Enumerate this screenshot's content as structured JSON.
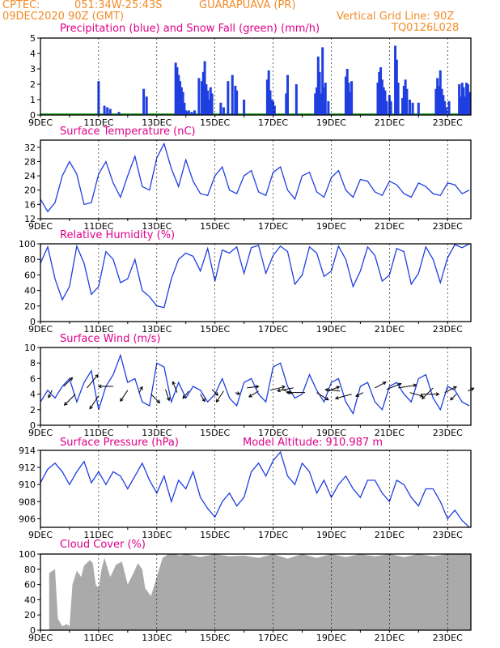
{
  "header": {
    "source": "CPTEC:",
    "coords": "051:34W-25:43S",
    "station": "GUARAPUAVA (PR)",
    "run": "09DEC2020 90Z (GMT)",
    "grid_note": "Vertical Grid Line: 90Z",
    "code": "TQ0126L028"
  },
  "colors": {
    "header": "#f28c28",
    "title": "#e0008a",
    "line": "#1f3fe0",
    "snow": "#20a020",
    "cloud": "#aaaaaa"
  },
  "x_axis": {
    "tick_labels": [
      "9DEC",
      "11DEC",
      "13DEC",
      "15DEC",
      "17DEC",
      "19DEC",
      "21DEC",
      "23DEC"
    ],
    "tick_days": [
      9,
      11,
      13,
      15,
      17,
      19,
      21,
      23
    ],
    "range": [
      9,
      23.8
    ]
  },
  "chart_data": [
    {
      "id": "precip",
      "type": "bar",
      "title": "Precipitation (blue) and Snow Fall (green) (mm/h)",
      "ylim": [
        0,
        5
      ],
      "yticks": [
        0,
        1,
        2,
        3,
        4,
        5
      ],
      "x": [
        11.0,
        11.2,
        11.3,
        11.4,
        11.7,
        12.55,
        12.65,
        13.65,
        13.7,
        13.75,
        13.8,
        13.85,
        13.9,
        13.95,
        14.0,
        14.05,
        14.1,
        14.2,
        14.3,
        14.45,
        14.55,
        14.6,
        14.65,
        14.7,
        14.75,
        14.8,
        14.85,
        14.9,
        15.2,
        15.3,
        15.45,
        15.6,
        15.7,
        15.75,
        16.0,
        16.8,
        16.85,
        16.9,
        16.95,
        17.0,
        17.05,
        17.45,
        17.5,
        17.8,
        18.45,
        18.5,
        18.55,
        18.6,
        18.65,
        18.7,
        18.75,
        18.8,
        18.9,
        19.5,
        19.55,
        19.6,
        19.65,
        19.7,
        20.6,
        20.65,
        20.7,
        20.75,
        20.8,
        20.85,
        20.9,
        21.0,
        21.05,
        21.2,
        21.25,
        21.3,
        21.45,
        21.5,
        21.55,
        21.6,
        21.7,
        21.8,
        22.0,
        22.6,
        22.65,
        22.7,
        22.75,
        22.8,
        22.85,
        22.9,
        22.95,
        23.05,
        23.4,
        23.45,
        23.5,
        23.55,
        23.6,
        23.65,
        23.7,
        23.75
      ],
      "values": [
        2.2,
        0.6,
        0.5,
        0.4,
        0.2,
        1.7,
        1.2,
        3.4,
        3.1,
        2.6,
        2.2,
        1.8,
        1.5,
        0.8,
        0.3,
        0.2,
        0.3,
        0.2,
        0.3,
        2.4,
        2.2,
        2.8,
        3.5,
        2.0,
        1.6,
        1.0,
        1.8,
        1.4,
        0.8,
        0.5,
        2.2,
        2.6,
        1.9,
        1.6,
        1.0,
        2.3,
        2.9,
        1.6,
        1.0,
        0.9,
        0.6,
        1.4,
        2.6,
        2.0,
        1.4,
        1.8,
        3.8,
        2.8,
        1.4,
        4.4,
        1.8,
        2.1,
        0.9,
        2.5,
        3.0,
        2.1,
        1.5,
        2.2,
        2.1,
        2.8,
        3.1,
        2.3,
        1.8,
        1.6,
        0.9,
        1.3,
        0.9,
        4.5,
        3.6,
        2.1,
        1.1,
        1.9,
        2.3,
        1.7,
        1.0,
        0.8,
        0.8,
        1.7,
        2.4,
        1.9,
        2.9,
        1.7,
        1.3,
        0.9,
        0.5,
        0.9,
        2.0,
        1.2,
        2.1,
        1.8,
        1.2,
        2.1,
        2.0,
        1.5
      ],
      "snow": "0"
    },
    {
      "id": "temp",
      "type": "line",
      "title": "Surface Temperature (nC)",
      "ylim": [
        12,
        34
      ],
      "yticks": [
        12,
        16,
        20,
        24,
        28,
        32
      ],
      "x": [
        9.0,
        9.25,
        9.5,
        9.75,
        10.0,
        10.25,
        10.5,
        10.75,
        11.0,
        11.25,
        11.5,
        11.75,
        12.0,
        12.25,
        12.5,
        12.75,
        13.0,
        13.25,
        13.5,
        13.75,
        14.0,
        14.25,
        14.5,
        14.75,
        15.0,
        15.25,
        15.5,
        15.75,
        16.0,
        16.25,
        16.5,
        16.75,
        17.0,
        17.25,
        17.5,
        17.75,
        18.0,
        18.25,
        18.5,
        18.75,
        19.0,
        19.25,
        19.5,
        19.75,
        20.0,
        20.25,
        20.5,
        20.75,
        21.0,
        21.25,
        21.5,
        21.75,
        22.0,
        22.25,
        22.5,
        22.75,
        23.0,
        23.25,
        23.5,
        23.75
      ],
      "values": [
        17.5,
        14.0,
        16.5,
        24.0,
        28.0,
        24.5,
        16.0,
        16.5,
        24.5,
        28.0,
        22.0,
        18.0,
        24.0,
        29.5,
        21.0,
        20.0,
        29.0,
        33.0,
        26.0,
        21.0,
        28.5,
        22.5,
        19.0,
        18.5,
        24.0,
        26.5,
        20.0,
        19.0,
        24.0,
        25.5,
        19.5,
        18.5,
        25.0,
        26.5,
        20.0,
        17.5,
        24.0,
        25.0,
        19.5,
        18.0,
        23.5,
        25.5,
        20.0,
        18.0,
        23.0,
        22.5,
        19.5,
        18.5,
        22.5,
        21.5,
        19.0,
        18.0,
        22.0,
        21.0,
        19.0,
        18.5,
        22.0,
        21.5,
        19.0,
        20.0
      ]
    },
    {
      "id": "rh",
      "type": "line",
      "title": "Relative Humidity (%)",
      "ylim": [
        0,
        100
      ],
      "yticks": [
        0,
        20,
        40,
        60,
        80,
        100
      ],
      "x": [
        9.0,
        9.25,
        9.5,
        9.75,
        10.0,
        10.25,
        10.5,
        10.75,
        11.0,
        11.25,
        11.5,
        11.75,
        12.0,
        12.25,
        12.5,
        12.75,
        13.0,
        13.25,
        13.5,
        13.75,
        14.0,
        14.25,
        14.5,
        14.75,
        15.0,
        15.25,
        15.5,
        15.75,
        16.0,
        16.25,
        16.5,
        16.75,
        17.0,
        17.25,
        17.5,
        17.75,
        18.0,
        18.25,
        18.5,
        18.75,
        19.0,
        19.25,
        19.5,
        19.75,
        20.0,
        20.25,
        20.5,
        20.75,
        21.0,
        21.25,
        21.5,
        21.75,
        22.0,
        22.25,
        22.5,
        22.75,
        23.0,
        23.25,
        23.5,
        23.75
      ],
      "values": [
        75,
        96,
        55,
        28,
        45,
        97,
        75,
        35,
        45,
        90,
        80,
        50,
        55,
        80,
        40,
        32,
        20,
        18,
        55,
        80,
        88,
        84,
        65,
        94,
        52,
        92,
        88,
        96,
        62,
        95,
        98,
        62,
        85,
        97,
        90,
        48,
        60,
        96,
        88,
        58,
        65,
        97,
        80,
        45,
        65,
        96,
        85,
        52,
        60,
        94,
        90,
        48,
        62,
        96,
        80,
        50,
        82,
        99,
        95,
        100
      ]
    },
    {
      "id": "wind",
      "type": "line",
      "title": "Surface Wind (m/s)",
      "ylim": [
        0,
        10
      ],
      "yticks": [
        0,
        2,
        4,
        6,
        8,
        10
      ],
      "x": [
        9.0,
        9.25,
        9.5,
        9.75,
        10.0,
        10.25,
        10.5,
        10.75,
        11.0,
        11.25,
        11.5,
        11.75,
        12.0,
        12.25,
        12.5,
        12.75,
        13.0,
        13.25,
        13.5,
        13.75,
        14.0,
        14.25,
        14.5,
        14.75,
        15.0,
        15.25,
        15.5,
        15.75,
        16.0,
        16.25,
        16.5,
        16.75,
        17.0,
        17.25,
        17.5,
        17.75,
        18.0,
        18.25,
        18.5,
        18.75,
        19.0,
        19.25,
        19.5,
        19.75,
        20.0,
        20.25,
        20.5,
        20.75,
        21.0,
        21.25,
        21.5,
        21.75,
        22.0,
        22.25,
        22.5,
        22.75,
        23.0,
        23.25,
        23.5,
        23.75
      ],
      "values": [
        3.0,
        4.5,
        3.5,
        5.0,
        6.0,
        3.0,
        5.5,
        7.0,
        2.0,
        5.0,
        6.5,
        9.0,
        5.5,
        6.0,
        3.0,
        2.5,
        8.0,
        7.5,
        3.0,
        5.5,
        3.5,
        5.0,
        4.5,
        3.0,
        4.0,
        6.0,
        3.5,
        2.5,
        5.5,
        6.0,
        4.0,
        3.0,
        7.5,
        8.0,
        5.0,
        3.5,
        4.0,
        6.5,
        4.5,
        3.0,
        5.5,
        6.0,
        3.0,
        1.5,
        5.0,
        5.5,
        3.0,
        2.0,
        5.0,
        5.5,
        4.0,
        3.0,
        6.0,
        6.5,
        3.5,
        2.0,
        5.0,
        4.5,
        3.0,
        2.5
      ],
      "arrows": {
        "x": [
          9.4,
          9.8,
          10.2,
          10.6,
          11.0,
          11.5,
          12.0,
          12.4,
          12.8,
          13.3,
          13.7,
          14.1,
          14.5,
          14.9,
          15.3,
          15.7,
          16.1,
          16.5,
          16.9,
          17.3,
          17.7,
          18.1,
          18.5,
          18.9,
          19.3,
          19.7,
          20.1,
          20.5,
          20.9,
          21.3,
          21.7,
          22.1,
          22.5,
          22.9,
          23.3,
          23.7
        ],
        "y": [
          4.5,
          5.0,
          4.0,
          4.8,
          3.8,
          5.0,
          4.5,
          4.2,
          4.0,
          4.6,
          4.2,
          4.4,
          4.0,
          4.6,
          4.4,
          4.2,
          4.8,
          4.4,
          4.5,
          4.6,
          4.8,
          4.2,
          4.2,
          4.4,
          4.4,
          4.0,
          4.2,
          4.8,
          4.6,
          4.8,
          4.2,
          4.0,
          4.8,
          4.2,
          4.0,
          4.4
        ],
        "u": [
          -0.5,
          1.2,
          -1.5,
          1.5,
          -1.2,
          -2.0,
          -1.0,
          0.4,
          1.2,
          0.5,
          -0.6,
          -0.8,
          0.6,
          0.8,
          -1.0,
          0.6,
          1.6,
          -1.3,
          2.0,
          1.4,
          -2.2,
          -2.5,
          1.6,
          1.5,
          -2.0,
          -2.2,
          -1.0,
          1.5,
          2.0,
          2.5,
          1.8,
          2.4,
          -1.5,
          1.6,
          -0.8,
          0.8
        ],
        "v": [
          -1.0,
          1.2,
          -1.5,
          1.8,
          -1.8,
          0.0,
          -1.5,
          0.8,
          -1.2,
          -1.5,
          1.5,
          -1.0,
          -1.0,
          -0.8,
          -1.5,
          -0.2,
          0.2,
          -0.8,
          0.5,
          -0.5,
          -0.4,
          0.0,
          -1.0,
          0.6,
          0.2,
          -0.6,
          -0.5,
          0.8,
          0.8,
          0.4,
          -0.5,
          0.0,
          -1.5,
          0.8,
          -0.8,
          0.4
        ]
      }
    },
    {
      "id": "pres",
      "type": "line",
      "title": "Surface Pressure (hPa)",
      "subtitle": "Model Altitude: 910.987 m",
      "ylim": [
        905,
        914
      ],
      "yticks": [
        906,
        908,
        910,
        912,
        914
      ],
      "x": [
        9.0,
        9.25,
        9.5,
        9.75,
        10.0,
        10.25,
        10.5,
        10.75,
        11.0,
        11.25,
        11.5,
        11.75,
        12.0,
        12.25,
        12.5,
        12.75,
        13.0,
        13.25,
        13.5,
        13.75,
        14.0,
        14.25,
        14.5,
        14.75,
        15.0,
        15.25,
        15.5,
        15.75,
        16.0,
        16.25,
        16.5,
        16.75,
        17.0,
        17.25,
        17.5,
        17.75,
        18.0,
        18.25,
        18.5,
        18.75,
        19.0,
        19.25,
        19.5,
        19.75,
        20.0,
        20.25,
        20.5,
        20.75,
        21.0,
        21.25,
        21.5,
        21.75,
        22.0,
        22.25,
        22.5,
        22.75,
        23.0,
        23.25,
        23.5,
        23.75
      ],
      "values": [
        910.2,
        911.8,
        912.5,
        911.5,
        910.0,
        911.5,
        912.7,
        910.2,
        911.5,
        910.0,
        911.5,
        911.0,
        909.5,
        911.0,
        912.5,
        910.5,
        909.0,
        911.0,
        908.0,
        910.5,
        909.5,
        911.5,
        908.5,
        907.2,
        906.2,
        908.0,
        909.0,
        907.5,
        908.5,
        911.5,
        912.5,
        911.0,
        912.8,
        913.8,
        911.0,
        910.0,
        912.5,
        911.5,
        909.0,
        910.5,
        908.5,
        910.0,
        911.0,
        909.5,
        908.5,
        910.5,
        910.5,
        909.0,
        908.0,
        910.5,
        910.0,
        908.5,
        907.5,
        909.5,
        909.5,
        908.0,
        906.0,
        907.0,
        905.8,
        905.0
      ]
    },
    {
      "id": "cloud",
      "type": "area",
      "title": "Cloud Cover (%)",
      "ylim": [
        0,
        100
      ],
      "yticks": [
        0,
        20,
        40,
        60,
        80,
        100
      ],
      "x": [
        9.3,
        9.5,
        9.6,
        9.75,
        9.9,
        10.0,
        10.1,
        10.25,
        10.4,
        10.5,
        10.7,
        10.8,
        10.9,
        11.0,
        11.1,
        11.2,
        11.4,
        11.6,
        11.8,
        12.0,
        12.2,
        12.35,
        12.5,
        12.6,
        12.8,
        13.0,
        13.2,
        13.4,
        13.6,
        13.8,
        14.0,
        14.5,
        15.0,
        15.5,
        16.0,
        16.5,
        17.0,
        17.5,
        18.0,
        18.5,
        19.0,
        19.5,
        20.0,
        20.5,
        21.0,
        21.5,
        22.0,
        22.5,
        23.0,
        23.5,
        23.8
      ],
      "values": [
        75,
        80,
        15,
        5,
        8,
        5,
        60,
        78,
        70,
        85,
        92,
        88,
        60,
        55,
        80,
        95,
        70,
        86,
        90,
        60,
        75,
        88,
        80,
        55,
        45,
        70,
        95,
        100,
        100,
        98,
        100,
        96,
        100,
        97,
        98,
        95,
        100,
        94,
        100,
        95,
        100,
        96,
        100,
        97,
        100,
        96,
        100,
        97,
        100,
        100,
        100
      ]
    }
  ]
}
